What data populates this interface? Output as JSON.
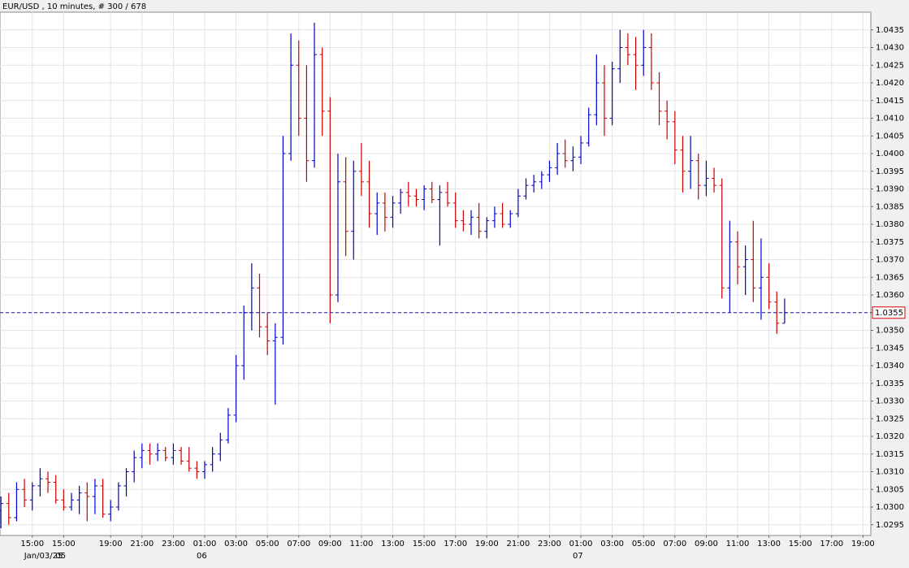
{
  "chart_data": {
    "type": "ohlc",
    "title": "EUR/USD , 10 minutes, # 300 / 678",
    "up_color": "#0000cc",
    "down_color": "#cc0000",
    "grid": true,
    "last_price": 1.0355,
    "last_price_color": "#1a1a9a",
    "ylim": [
      1.0292,
      1.044
    ],
    "yticks": [
      1.0295,
      {
        "value": 1.03,
        "label": "1.0300"
      },
      1.0305,
      {
        "value": 1.031,
        "label": "1.0310"
      },
      1.0315,
      {
        "value": 1.032,
        "label": "1.0320"
      },
      1.0325,
      {
        "value": 1.033,
        "label": "1.0330"
      },
      1.0335,
      {
        "value": 1.034,
        "label": "1.0340"
      },
      1.0345,
      {
        "value": 1.035,
        "label": "1.0350"
      },
      1.0355,
      {
        "value": 1.036,
        "label": "1.0360"
      },
      1.0365,
      {
        "value": 1.037,
        "label": "1.0370"
      },
      1.0375,
      {
        "value": 1.038,
        "label": "1.0380"
      },
      1.0385,
      {
        "value": 1.039,
        "label": "1.0390"
      },
      1.0395,
      {
        "value": 1.04,
        "label": "1.0400"
      },
      1.0405,
      {
        "value": 1.041,
        "label": "1.0410"
      },
      1.0415,
      {
        "value": 1.042,
        "label": "1.0420"
      },
      1.0425,
      {
        "value": 1.043,
        "label": "1.0430"
      },
      1.0435
    ],
    "xlim": [
      -0.12,
      111.0
    ],
    "xticks": [
      {
        "value": 4,
        "label": "15:00"
      },
      {
        "value": 8,
        "label": "15:00"
      },
      {
        "value": 14,
        "label": "19:00"
      },
      {
        "value": 18,
        "label": "21:00"
      },
      {
        "value": 22,
        "label": "23:00"
      },
      {
        "value": 26,
        "label": "01:00"
      },
      {
        "value": 30,
        "label": "03:00"
      },
      {
        "value": 34,
        "label": "05:00"
      },
      {
        "value": 38,
        "label": "07:00"
      },
      {
        "value": 42,
        "label": "09:00"
      },
      {
        "value": 46,
        "label": "11:00"
      },
      {
        "value": 50,
        "label": "13:00"
      },
      {
        "value": 54,
        "label": "15:00"
      },
      {
        "value": 58,
        "label": "17:00"
      },
      {
        "value": 62,
        "label": "19:00"
      },
      {
        "value": 66,
        "label": "21:00"
      },
      {
        "value": 70,
        "label": "23:00"
      },
      {
        "value": 74,
        "label": "01:00"
      },
      {
        "value": 78,
        "label": "03:00"
      },
      {
        "value": 82,
        "label": "05:00"
      },
      {
        "value": 86,
        "label": "07:00"
      },
      {
        "value": 90,
        "label": "09:00"
      },
      {
        "value": 94,
        "label": "11:00"
      },
      {
        "value": 98,
        "label": "13:00"
      },
      {
        "value": 102,
        "label": "15:00"
      },
      {
        "value": 106,
        "label": "17:00"
      },
      {
        "value": 110,
        "label": "19:00"
      }
    ],
    "date_labels": [
      {
        "value": 4,
        "label": "Jan/03/25"
      },
      {
        "value": 8,
        "label": "05"
      },
      {
        "value": 26,
        "label": "06"
      },
      {
        "value": 74,
        "label": "07"
      }
    ],
    "open": [
      1.0299,
      1.0301,
      1.0297,
      1.0305,
      1.0302,
      1.0306,
      1.0308,
      1.0307,
      1.0302,
      1.03,
      1.0302,
      1.0304,
      1.0303,
      1.0306,
      1.0298,
      1.03,
      1.0306,
      1.031,
      1.0314,
      1.0316,
      1.0315,
      1.0316,
      1.0314,
      1.0316,
      1.0313,
      1.0311,
      1.031,
      1.0312,
      1.0315,
      1.0319,
      1.0326,
      1.034,
      1.0355,
      1.0362,
      1.0351,
      1.0347,
      1.0348,
      1.04,
      1.0425,
      1.041,
      1.0398,
      1.0428,
      1.0412,
      1.036,
      1.0392,
      1.0378,
      1.0395,
      1.0392,
      1.0383,
      1.0386,
      1.0382,
      1.0386,
      1.0389,
      1.0388,
      1.0387,
      1.039,
      1.0387,
      1.0389,
      1.0386,
      1.0381,
      1.038,
      1.0382,
      1.0378,
      1.0381,
      1.0383,
      1.038,
      1.0383,
      1.0388,
      1.0391,
      1.0392,
      1.0394,
      1.0396,
      1.04,
      1.0398,
      1.0399,
      1.0403,
      1.0411,
      1.042,
      1.041,
      1.0424,
      1.043,
      1.0428,
      1.0425,
      1.043,
      1.042,
      1.0412,
      1.0409,
      1.0401,
      1.0395,
      1.0398,
      1.0391,
      1.0393,
      1.0391,
      1.0362,
      1.0375,
      1.0368,
      1.037,
      1.0362,
      1.0365,
      1.0358,
      1.0352
    ],
    "high": [
      1.0303,
      1.0304,
      1.0307,
      1.0308,
      1.0307,
      1.0311,
      1.031,
      1.0309,
      1.0305,
      1.0304,
      1.0306,
      1.0307,
      1.0308,
      1.0308,
      1.0302,
      1.0307,
      1.0311,
      1.0316,
      1.0318,
      1.0318,
      1.0318,
      1.0317,
      1.0318,
      1.0317,
      1.0317,
      1.0313,
      1.0313,
      1.0317,
      1.0321,
      1.0328,
      1.0343,
      1.0357,
      1.0369,
      1.0366,
      1.0355,
      1.0352,
      1.0405,
      1.0434,
      1.0432,
      1.0425,
      1.0437,
      1.043,
      1.0416,
      1.04,
      1.0399,
      1.0398,
      1.0403,
      1.0398,
      1.0389,
      1.0389,
      1.0388,
      1.039,
      1.0392,
      1.039,
      1.0391,
      1.0392,
      1.0391,
      1.0392,
      1.0389,
      1.0384,
      1.0384,
      1.0386,
      1.0382,
      1.0385,
      1.0386,
      1.0384,
      1.039,
      1.0393,
      1.0394,
      1.0395,
      1.0398,
      1.0403,
      1.0404,
      1.0402,
      1.0405,
      1.0413,
      1.0428,
      1.0425,
      1.0426,
      1.0435,
      1.0434,
      1.0433,
      1.0435,
      1.0434,
      1.0423,
      1.0415,
      1.0412,
      1.0405,
      1.0405,
      1.04,
      1.0398,
      1.0396,
      1.0393,
      1.0381,
      1.0378,
      1.0374,
      1.0381,
      1.0376,
      1.0369,
      1.0361,
      1.0359
    ],
    "low": [
      1.0294,
      1.0295,
      1.0296,
      1.03,
      1.0299,
      1.0303,
      1.0304,
      1.0301,
      1.0299,
      1.0299,
      1.0298,
      1.0296,
      1.0298,
      1.0297,
      1.0296,
      1.0299,
      1.0303,
      1.0307,
      1.0311,
      1.0312,
      1.0313,
      1.0313,
      1.0312,
      1.0312,
      1.031,
      1.0308,
      1.0308,
      1.031,
      1.0313,
      1.0318,
      1.0324,
      1.0336,
      1.035,
      1.0348,
      1.0343,
      1.0329,
      1.0346,
      1.0398,
      1.0405,
      1.0392,
      1.0396,
      1.0405,
      1.0352,
      1.0358,
      1.0371,
      1.037,
      1.0388,
      1.0379,
      1.0377,
      1.0378,
      1.0379,
      1.0383,
      1.0385,
      1.0385,
      1.0384,
      1.0386,
      1.0374,
      1.0385,
      1.0379,
      1.0378,
      1.0377,
      1.0376,
      1.0376,
      1.0379,
      1.0379,
      1.0379,
      1.0382,
      1.0387,
      1.0389,
      1.039,
      1.0392,
      1.0394,
      1.0396,
      1.0395,
      1.0397,
      1.0402,
      1.0408,
      1.0405,
      1.0408,
      1.042,
      1.0425,
      1.0418,
      1.0422,
      1.0418,
      1.0408,
      1.0404,
      1.0397,
      1.0389,
      1.039,
      1.0387,
      1.0388,
      1.0389,
      1.0359,
      1.0355,
      1.0363,
      1.036,
      1.0358,
      1.0353,
      1.0356,
      1.0349,
      1.0352
    ],
    "close": [
      1.0301,
      1.0297,
      1.0305,
      1.0302,
      1.0306,
      1.0308,
      1.0307,
      1.0302,
      1.03,
      1.0302,
      1.0304,
      1.0303,
      1.0306,
      1.0298,
      1.03,
      1.0306,
      1.031,
      1.0314,
      1.0316,
      1.0315,
      1.0316,
      1.0314,
      1.0316,
      1.0313,
      1.0311,
      1.031,
      1.0312,
      1.0315,
      1.0319,
      1.0326,
      1.034,
      1.0355,
      1.0362,
      1.0351,
      1.0347,
      1.0348,
      1.04,
      1.0425,
      1.041,
      1.0398,
      1.0428,
      1.0412,
      1.036,
      1.0392,
      1.0378,
      1.0395,
      1.0392,
      1.0383,
      1.0386,
      1.0382,
      1.0386,
      1.0389,
      1.0388,
      1.0387,
      1.039,
      1.0387,
      1.0389,
      1.0386,
      1.0381,
      1.038,
      1.0382,
      1.0378,
      1.0381,
      1.0383,
      1.038,
      1.0383,
      1.0388,
      1.0391,
      1.0392,
      1.0394,
      1.0396,
      1.04,
      1.0398,
      1.0399,
      1.0403,
      1.0411,
      1.042,
      1.041,
      1.0424,
      1.043,
      1.0428,
      1.0425,
      1.043,
      1.042,
      1.0412,
      1.0409,
      1.0401,
      1.0395,
      1.0398,
      1.0391,
      1.0393,
      1.0391,
      1.0362,
      1.0375,
      1.0368,
      1.037,
      1.0362,
      1.0365,
      1.0358,
      1.0352,
      1.0355
    ]
  }
}
